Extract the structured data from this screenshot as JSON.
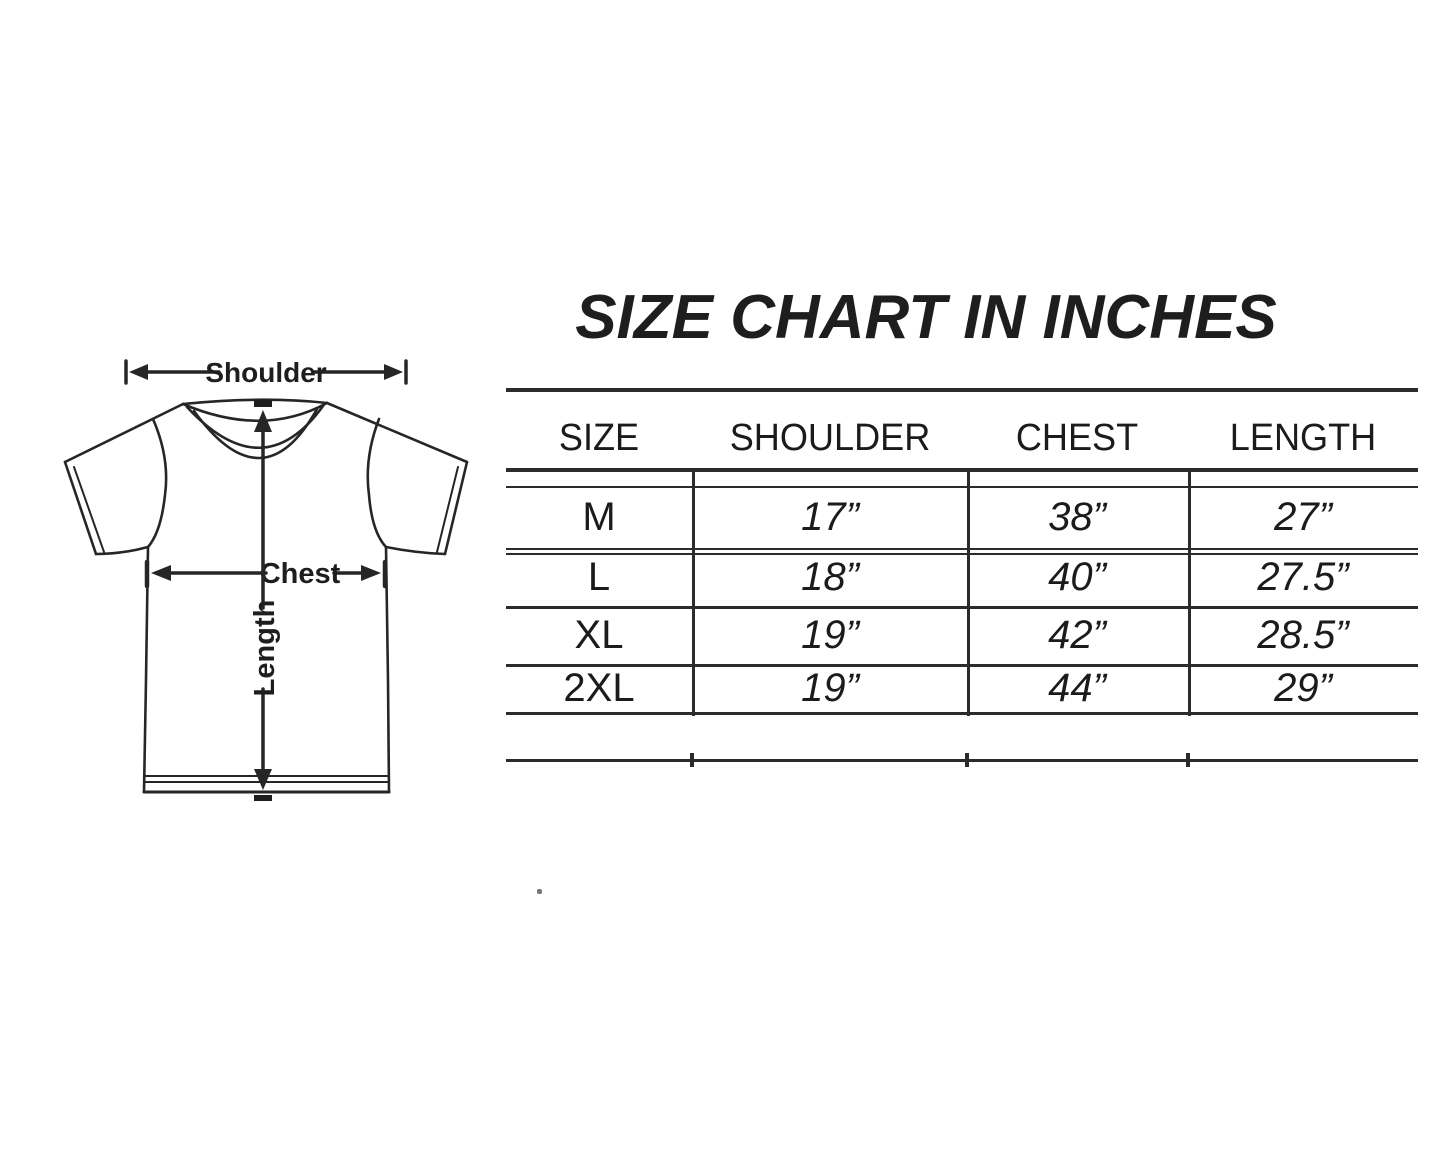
{
  "title": "SIZE CHART IN INCHES",
  "diagram": {
    "labels": {
      "shoulder": "Shoulder",
      "chest": "Chest",
      "length": "Length"
    }
  },
  "table": {
    "columns": [
      "SIZE",
      "SHOULDER",
      "CHEST",
      "LENGTH"
    ],
    "rows": [
      {
        "size": "M",
        "shoulder": "17”",
        "chest": "38”",
        "length": "27”"
      },
      {
        "size": "L",
        "shoulder": "18”",
        "chest": "40”",
        "length": "27.5”"
      },
      {
        "size": "XL",
        "shoulder": "19”",
        "chest": "42”",
        "length": "28.5”"
      },
      {
        "size": "2XL",
        "shoulder": "19”",
        "chest": "44”",
        "length": "29”"
      }
    ]
  },
  "chart_data": {
    "type": "table",
    "title": "SIZE CHART IN INCHES",
    "unit": "inches",
    "columns": [
      "SIZE",
      "SHOULDER",
      "CHEST",
      "LENGTH"
    ],
    "rows": [
      [
        "M",
        17,
        38,
        27
      ],
      [
        "L",
        18,
        40,
        27.5
      ],
      [
        "XL",
        19,
        42,
        28.5
      ],
      [
        "2XL",
        19,
        44,
        29
      ]
    ]
  },
  "colors": {
    "ink": "#2b2b2b",
    "text": "#1b1b1b",
    "background": "#ffffff"
  }
}
